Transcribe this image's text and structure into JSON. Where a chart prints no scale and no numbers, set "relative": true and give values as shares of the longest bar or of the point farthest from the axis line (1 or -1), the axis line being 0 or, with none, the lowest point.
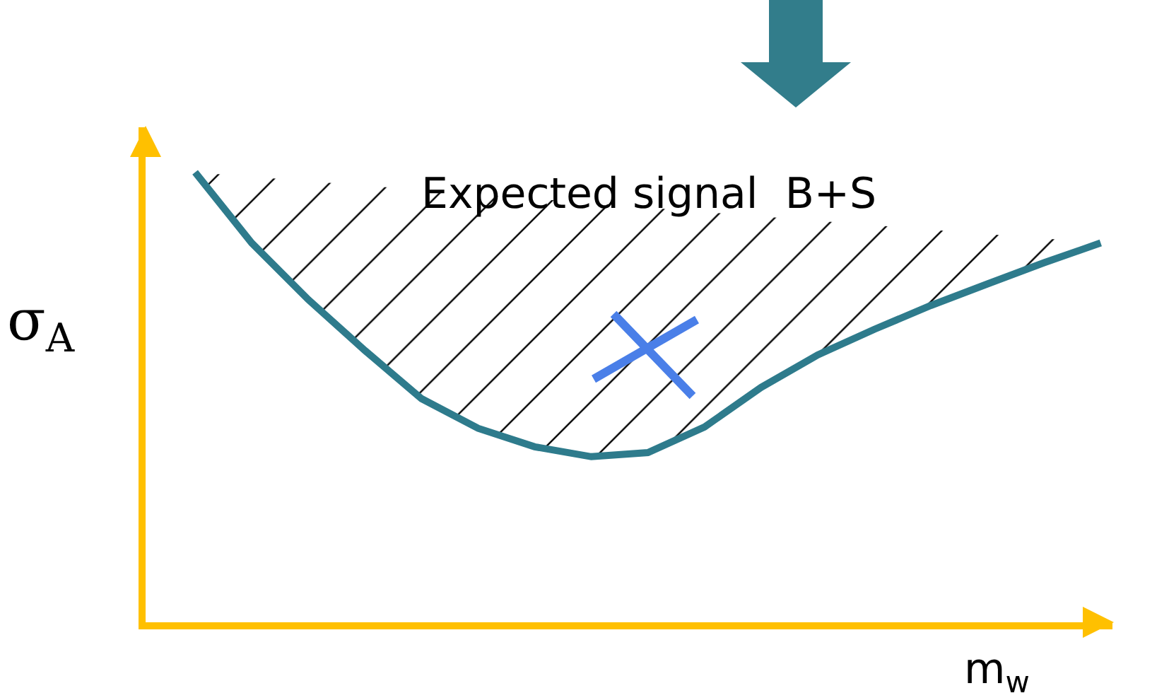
{
  "chart_data": {
    "type": "area",
    "relative": true,
    "xlabel": "m$_{w}$",
    "ylabel": "σ$_{A}$",
    "categories": [
      null,
      null,
      null,
      null,
      null,
      null,
      null,
      null,
      null,
      null,
      null,
      null,
      null,
      null,
      null,
      null,
      null
    ],
    "series": [
      {
        "color": "#2e7b8c",
        "values": [
          1,
          0.843,
          0.717,
          0.604,
          0.497,
          0.431,
          0.39,
          0.368,
          0.377,
          0.434,
          0.522,
          0.594,
          0.651,
          0.704,
          0.752,
          0.799,
          0.843
        ]
      }
    ],
    "annotations": [
      "Expected signal  B+S"
    ],
    "grid": false,
    "legend": false,
    "marker": "none"
  }
}
